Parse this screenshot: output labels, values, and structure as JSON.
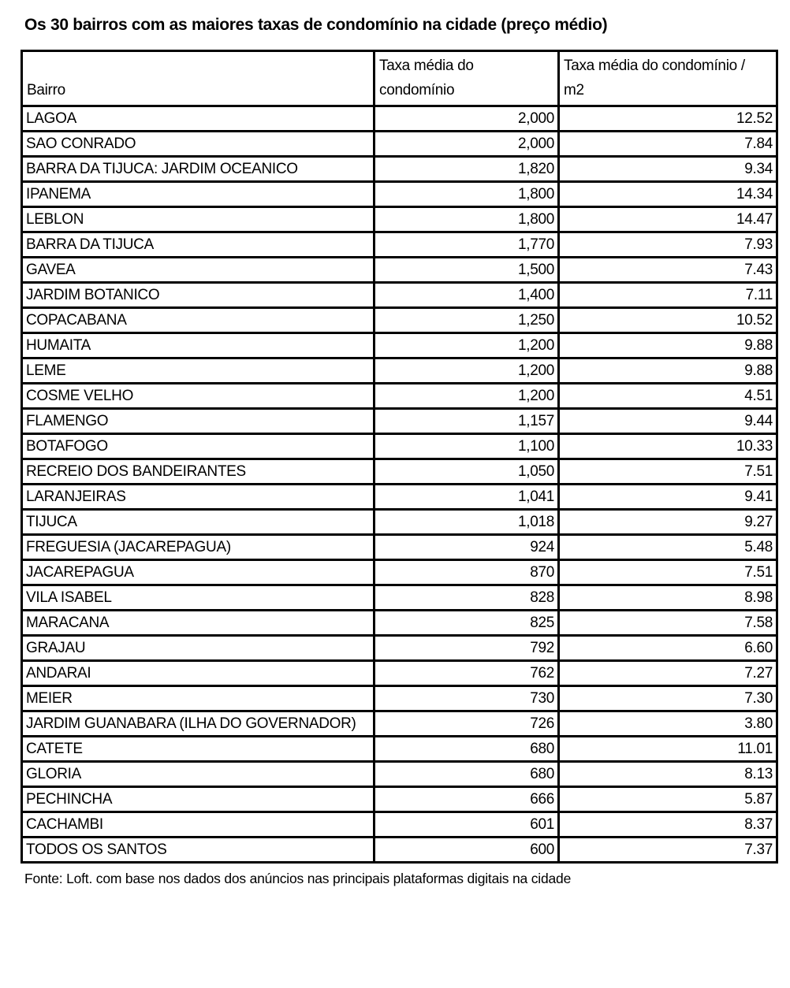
{
  "chart_data": {
    "type": "table",
    "title": "Os 30 bairros com as maiores taxas de condomínio na cidade (preço médio)",
    "columns": [
      "Bairro",
      "Taxa média do condomínio",
      "Taxa média do condomínio / m2"
    ],
    "rows": [
      [
        "LAGOA",
        "2,000",
        "12.52"
      ],
      [
        "SAO CONRADO",
        "2,000",
        "7.84"
      ],
      [
        "BARRA DA TIJUCA: JARDIM OCEANICO",
        "1,820",
        "9.34"
      ],
      [
        "IPANEMA",
        "1,800",
        "14.34"
      ],
      [
        "LEBLON",
        "1,800",
        "14.47"
      ],
      [
        "BARRA DA TIJUCA",
        "1,770",
        "7.93"
      ],
      [
        "GAVEA",
        "1,500",
        "7.43"
      ],
      [
        "JARDIM BOTANICO",
        "1,400",
        "7.11"
      ],
      [
        "COPACABANA",
        "1,250",
        "10.52"
      ],
      [
        "HUMAITA",
        "1,200",
        "9.88"
      ],
      [
        "LEME",
        "1,200",
        "9.88"
      ],
      [
        "COSME VELHO",
        "1,200",
        "4.51"
      ],
      [
        "FLAMENGO",
        "1,157",
        "9.44"
      ],
      [
        "BOTAFOGO",
        "1,100",
        "10.33"
      ],
      [
        "RECREIO DOS BANDEIRANTES",
        "1,050",
        "7.51"
      ],
      [
        "LARANJEIRAS",
        "1,041",
        "9.41"
      ],
      [
        "TIJUCA",
        "1,018",
        "9.27"
      ],
      [
        "FREGUESIA (JACAREPAGUA)",
        "924",
        "5.48"
      ],
      [
        "JACAREPAGUA",
        "870",
        "7.51"
      ],
      [
        "VILA ISABEL",
        "828",
        "8.98"
      ],
      [
        "MARACANA",
        "825",
        "7.58"
      ],
      [
        "GRAJAU",
        "792",
        "6.60"
      ],
      [
        "ANDARAI",
        "762",
        "7.27"
      ],
      [
        "MEIER",
        "730",
        "7.30"
      ],
      [
        "JARDIM GUANABARA (ILHA DO GOVERNADOR)",
        "726",
        "3.80"
      ],
      [
        "CATETE",
        "680",
        "11.01"
      ],
      [
        "GLORIA",
        "680",
        "8.13"
      ],
      [
        "PECHINCHA",
        "666",
        "5.87"
      ],
      [
        "CACHAMBI",
        "601",
        "8.37"
      ],
      [
        "TODOS OS SANTOS",
        "600",
        "7.37"
      ]
    ],
    "source": "Fonte: Loft. com base nos dados dos anúncios nas principais plataformas digitais na cidade"
  },
  "header_display": [
    "Bairro",
    "Taxa média do\ncondomínio",
    "Taxa média do condomínio /\nm2"
  ]
}
